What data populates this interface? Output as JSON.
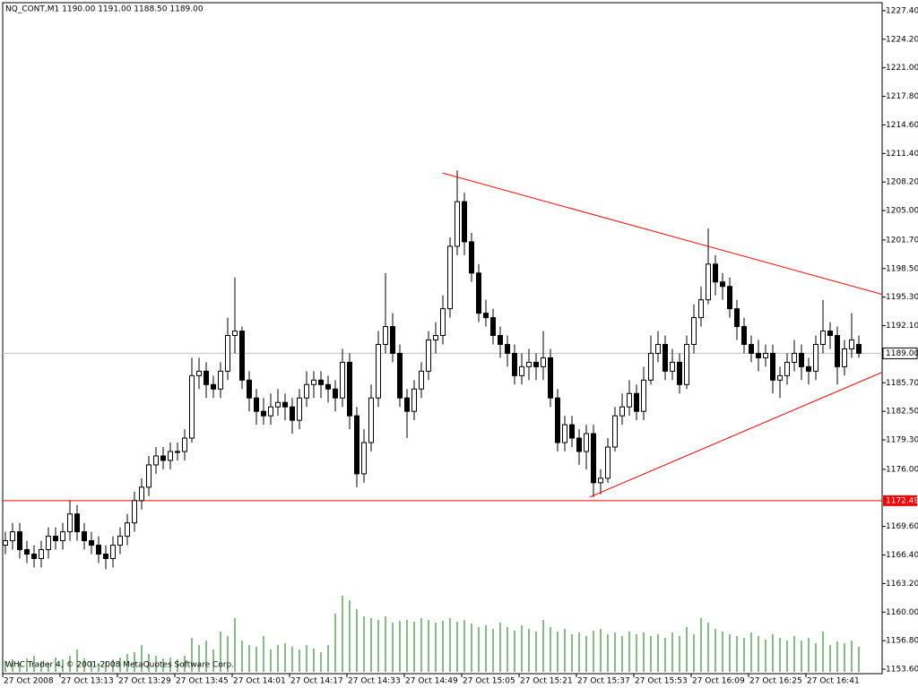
{
  "chart_data": {
    "type": "candlestick",
    "title": "NQ_CONT,M1  1190.00 1191.00 1188.50 1189.00",
    "footer": "WHC Trader 4, © 2001-2008 MetaQuotes Software Corp.",
    "x_labels": [
      "27 Oct 2008",
      "27 Oct 13:13",
      "27 Oct 13:29",
      "27 Oct 13:45",
      "27 Oct 14:01",
      "27 Oct 14:17",
      "27 Oct 14:33",
      "27 Oct 14:49",
      "27 Oct 15:05",
      "27 Oct 15:21",
      "27 Oct 15:37",
      "27 Oct 15:53",
      "27 Oct 16:09",
      "27 Oct 16:25",
      "27 Oct 16:41"
    ],
    "ylim": [
      1153.1,
      1228.3
    ],
    "yticks": [
      {
        "value": 1153.6,
        "label": "1153.60"
      },
      {
        "value": 1156.8,
        "label": "1156.80"
      },
      {
        "value": 1160.0,
        "label": "1160.00"
      },
      {
        "value": 1163.2,
        "label": "1163.20"
      },
      {
        "value": 1166.4,
        "label": "1166.40"
      },
      {
        "value": 1169.6,
        "label": "1169.60"
      },
      {
        "value": 1176.0,
        "label": "1176.00"
      },
      {
        "value": 1179.3,
        "label": "1179.30"
      },
      {
        "value": 1182.5,
        "label": "1182.50"
      },
      {
        "value": 1185.7,
        "label": "1185.70"
      },
      {
        "value": 1192.1,
        "label": "1192.10"
      },
      {
        "value": 1195.3,
        "label": "1195.30"
      },
      {
        "value": 1198.5,
        "label": "1198.50"
      },
      {
        "value": 1201.7,
        "label": "1201.70"
      },
      {
        "value": 1205.0,
        "label": "1205.00"
      },
      {
        "value": 1208.2,
        "label": "1208.20"
      },
      {
        "value": 1211.4,
        "label": "1211.40"
      },
      {
        "value": 1214.6,
        "label": "1214.60"
      },
      {
        "value": 1217.8,
        "label": "1217.80"
      },
      {
        "value": 1221.0,
        "label": "1221.00"
      },
      {
        "value": 1224.2,
        "label": "1224.20"
      },
      {
        "value": 1227.4,
        "label": "1227.40"
      }
    ],
    "open": [
      1167.5,
      1168,
      1169,
      1167,
      1166.5,
      1166,
      1167,
      1168.5,
      1168,
      1169,
      1171,
      1169,
      1168,
      1167.5,
      1166.5,
      1166,
      1167.5,
      1168.5,
      1170,
      1172.5,
      1174,
      1176.5,
      1177.5,
      1177,
      1178,
      1178,
      1179.5,
      1186.5,
      1187,
      1185.5,
      1185,
      1187,
      1191,
      1191.5,
      1186,
      1184,
      1182.5,
      1182,
      1183,
      1183.5,
      1183,
      1181.5,
      1184,
      1185.5,
      1186,
      1185.5,
      1185,
      1184,
      1188,
      1182,
      1175.5,
      1179,
      1184,
      1190,
      1192,
      1189,
      1184,
      1182.5,
      1185,
      1187,
      1190.5,
      1191,
      1194,
      1201,
      1206,
      1201.5,
      1198,
      1193.5,
      1193,
      1191,
      1190,
      1189,
      1186.5,
      1187.5,
      1188,
      1187.5,
      1188.5,
      1184,
      1179,
      1181,
      1179.5,
      1178,
      1180,
      1174.5,
      1175,
      1178.5,
      1182,
      1183,
      1184.5,
      1182.5,
      1186,
      1189,
      1190,
      1187,
      1188,
      1185.5,
      1190,
      1193,
      1195,
      1199,
      1197,
      1196.5,
      1194,
      1192,
      1190,
      1189,
      1188.5,
      1189,
      1186,
      1186.5,
      1188,
      1189,
      1187.5,
      1187,
      1190,
      1191.5,
      1191,
      1187.5,
      1189.5,
      1190
    ],
    "high": [
      1169,
      1170,
      1170,
      1168,
      1167.5,
      1168,
      1169.5,
      1169.5,
      1170,
      1172.5,
      1172,
      1170,
      1169,
      1168.5,
      1167.5,
      1168.5,
      1169.5,
      1171,
      1173.5,
      1175,
      1177.5,
      1178.5,
      1178.5,
      1179,
      1179,
      1180.5,
      1188.5,
      1188.5,
      1188,
      1186.5,
      1188,
      1193,
      1197.5,
      1192,
      1187,
      1185,
      1184,
      1184.5,
      1185,
      1184.5,
      1184,
      1185,
      1187,
      1187,
      1187,
      1186.5,
      1186,
      1189.5,
      1189,
      1183,
      1180.5,
      1185.5,
      1191.5,
      1198,
      1193.5,
      1190,
      1185,
      1186,
      1188,
      1191.5,
      1192.5,
      1195.5,
      1202,
      1209.5,
      1207,
      1202.5,
      1199,
      1195,
      1194,
      1192,
      1191,
      1190,
      1189,
      1189.5,
      1189,
      1191.5,
      1189.5,
      1185,
      1182,
      1182,
      1180.5,
      1181,
      1181,
      1176,
      1179.5,
      1183,
      1184.5,
      1186,
      1185.5,
      1187.5,
      1191,
      1191.5,
      1191,
      1189.5,
      1189,
      1191,
      1194.5,
      1196.5,
      1203,
      1200,
      1198,
      1197.5,
      1195,
      1193,
      1191,
      1190.5,
      1190,
      1190,
      1187.5,
      1189,
      1190.5,
      1190,
      1188.5,
      1191,
      1195,
      1192.5,
      1192,
      1190.5,
      1193.5,
      1191
    ],
    "low": [
      1166.5,
      1167,
      1166,
      1165.5,
      1165,
      1165,
      1166,
      1167,
      1167,
      1168,
      1168,
      1167,
      1166.5,
      1165.5,
      1164.8,
      1165,
      1166.5,
      1167.5,
      1169,
      1171.5,
      1173,
      1175.5,
      1176,
      1176,
      1177,
      1177,
      1179,
      1185,
      1184,
      1184,
      1184,
      1186,
      1189,
      1185,
      1182.5,
      1181,
      1181,
      1181,
      1182,
      1181.5,
      1180,
      1180.5,
      1183,
      1184,
      1184,
      1183.5,
      1182.5,
      1183,
      1180.5,
      1174,
      1174.5,
      1178,
      1183,
      1189,
      1188,
      1183,
      1179.5,
      1181.5,
      1184,
      1186,
      1189,
      1190,
      1193,
      1200,
      1200,
      1197,
      1192.5,
      1192,
      1190,
      1188.5,
      1187.5,
      1185.5,
      1185.5,
      1186,
      1186,
      1186,
      1183,
      1178,
      1178,
      1178.5,
      1176.5,
      1176,
      1172.9,
      1173.2,
      1174.5,
      1178,
      1181,
      1182,
      1181.5,
      1181.5,
      1185.5,
      1188,
      1186,
      1186,
      1184.5,
      1185,
      1189,
      1192,
      1194.5,
      1195.5,
      1195,
      1193,
      1190.5,
      1189,
      1188,
      1187,
      1187.5,
      1184.5,
      1184,
      1185.5,
      1187,
      1186,
      1185.5,
      1186,
      1189,
      1189.5,
      1185.5,
      1186.5,
      1188.5,
      1188.5
    ],
    "close": [
      1168,
      1169,
      1167,
      1166.5,
      1166,
      1167,
      1168.5,
      1168,
      1169,
      1171,
      1169,
      1168,
      1167.5,
      1166.5,
      1166,
      1167.5,
      1168.5,
      1170,
      1172.5,
      1174,
      1176.5,
      1177.5,
      1177,
      1178,
      1178,
      1179.5,
      1186.5,
      1187,
      1185.5,
      1185,
      1187,
      1191,
      1191.5,
      1186,
      1184,
      1182.5,
      1182,
      1183,
      1183.5,
      1183,
      1181.5,
      1184,
      1185.5,
      1186,
      1185.5,
      1185,
      1184,
      1188,
      1182,
      1175.5,
      1179,
      1184,
      1190,
      1192,
      1189,
      1184,
      1182.5,
      1185,
      1187,
      1190.5,
      1191,
      1194,
      1201,
      1206,
      1201.5,
      1198,
      1193.5,
      1193,
      1191,
      1190,
      1189,
      1186.5,
      1187.5,
      1188,
      1187.5,
      1188.5,
      1184,
      1179,
      1181,
      1179.5,
      1178,
      1180,
      1174.5,
      1175,
      1178.5,
      1182,
      1183,
      1184.5,
      1182.5,
      1186,
      1189,
      1190,
      1187,
      1188,
      1185.5,
      1190,
      1193,
      1195,
      1199,
      1197,
      1196.5,
      1194,
      1192,
      1190,
      1189,
      1188.5,
      1189,
      1186,
      1186.5,
      1188,
      1189,
      1187.5,
      1187,
      1190,
      1191.5,
      1191,
      1187.5,
      1189.5,
      1190.5,
      1189
    ],
    "volume": [
      12,
      14,
      10,
      15,
      18,
      12,
      10,
      16,
      14,
      18,
      25,
      15,
      12,
      10,
      12,
      14,
      16,
      20,
      22,
      30,
      20,
      18,
      15,
      16,
      14,
      18,
      38,
      30,
      35,
      25,
      45,
      40,
      60,
      35,
      30,
      28,
      40,
      25,
      30,
      32,
      28,
      25,
      30,
      26,
      22,
      30,
      65,
      85,
      80,
      70,
      62,
      60,
      58,
      62,
      55,
      57,
      58,
      56,
      60,
      58,
      55,
      57,
      60,
      56,
      58,
      54,
      50,
      52,
      48,
      55,
      50,
      46,
      52,
      48,
      45,
      58,
      50,
      45,
      48,
      42,
      44,
      40,
      46,
      48,
      42,
      44,
      40,
      45,
      42,
      44,
      40,
      42,
      38,
      44,
      40,
      50,
      42,
      60,
      55,
      48,
      45,
      42,
      40,
      38,
      44,
      40,
      36,
      42,
      38,
      35,
      40,
      35,
      38,
      32,
      45,
      30,
      34,
      32,
      35,
      28
    ],
    "up_color": "#ffffff",
    "down_color": "#000000",
    "volume_color": "#008000",
    "support": {
      "value": 1172.49,
      "color": "#ff0000"
    },
    "current_price": {
      "value": 1189,
      "label": "1189.00",
      "color": "#c0c0c0"
    },
    "trendlines": [
      {
        "color": "#ff0000",
        "x": [
          61,
          122.3
        ],
        "y": [
          1209.2,
          1195.6
        ]
      },
      {
        "color": "#ff0000",
        "x": [
          81.5,
          122.3
        ],
        "y": [
          1172.9,
          1186.9
        ]
      }
    ]
  }
}
